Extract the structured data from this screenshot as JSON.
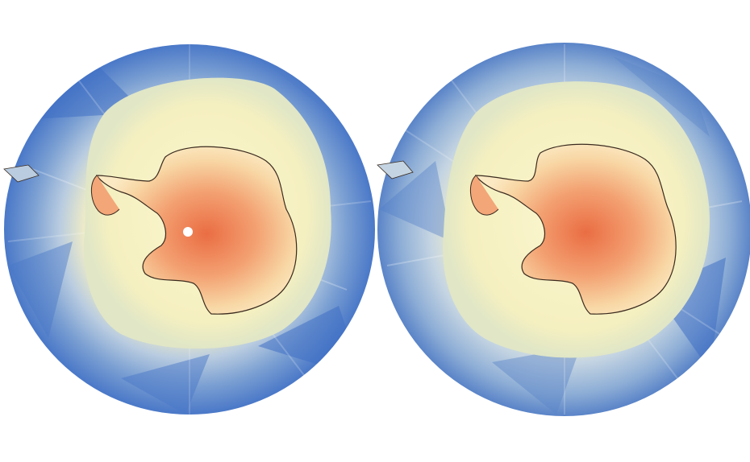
{
  "figure": {
    "panels": [
      {
        "id": "left",
        "shows_pole_hole": true
      },
      {
        "id": "right",
        "shows_pole_hole": false
      }
    ],
    "colors": {
      "ocean_deep": "#4a78c8",
      "ocean_mid": "#8fb0d8",
      "sea_ice_edge": "#dfe6c8",
      "sea_ice": "#f7f2c0",
      "ice_warm": "#f6b27a",
      "ice_hot": "#e8663c",
      "coastline": "#3a2a1e",
      "background": "#ffffff"
    }
  }
}
